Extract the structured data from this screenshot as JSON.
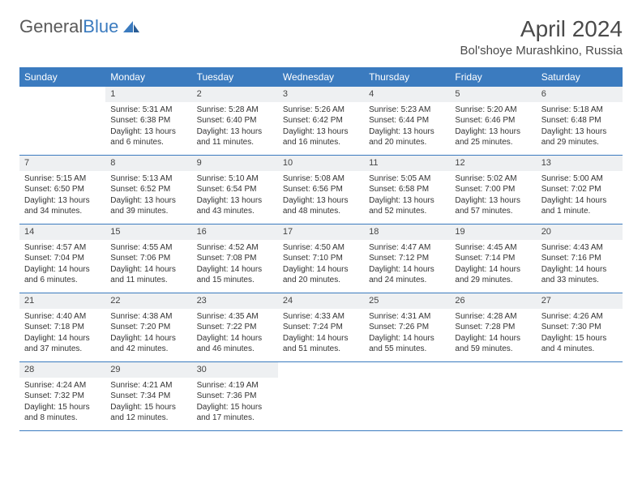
{
  "brand": {
    "part1": "General",
    "part2": "Blue"
  },
  "title": "April 2024",
  "location": "Bol'shoye Murashkino, Russia",
  "colors": {
    "header_bg": "#3b7bbf",
    "header_text": "#ffffff",
    "daynum_bg": "#eef0f2",
    "border": "#3b7bbf",
    "text": "#333333",
    "title_text": "#4a4a4a"
  },
  "weekdays": [
    "Sunday",
    "Monday",
    "Tuesday",
    "Wednesday",
    "Thursday",
    "Friday",
    "Saturday"
  ],
  "weeks": [
    [
      null,
      {
        "n": "1",
        "sr": "5:31 AM",
        "ss": "6:38 PM",
        "dl": "13 hours and 6 minutes."
      },
      {
        "n": "2",
        "sr": "5:28 AM",
        "ss": "6:40 PM",
        "dl": "13 hours and 11 minutes."
      },
      {
        "n": "3",
        "sr": "5:26 AM",
        "ss": "6:42 PM",
        "dl": "13 hours and 16 minutes."
      },
      {
        "n": "4",
        "sr": "5:23 AM",
        "ss": "6:44 PM",
        "dl": "13 hours and 20 minutes."
      },
      {
        "n": "5",
        "sr": "5:20 AM",
        "ss": "6:46 PM",
        "dl": "13 hours and 25 minutes."
      },
      {
        "n": "6",
        "sr": "5:18 AM",
        "ss": "6:48 PM",
        "dl": "13 hours and 29 minutes."
      }
    ],
    [
      {
        "n": "7",
        "sr": "5:15 AM",
        "ss": "6:50 PM",
        "dl": "13 hours and 34 minutes."
      },
      {
        "n": "8",
        "sr": "5:13 AM",
        "ss": "6:52 PM",
        "dl": "13 hours and 39 minutes."
      },
      {
        "n": "9",
        "sr": "5:10 AM",
        "ss": "6:54 PM",
        "dl": "13 hours and 43 minutes."
      },
      {
        "n": "10",
        "sr": "5:08 AM",
        "ss": "6:56 PM",
        "dl": "13 hours and 48 minutes."
      },
      {
        "n": "11",
        "sr": "5:05 AM",
        "ss": "6:58 PM",
        "dl": "13 hours and 52 minutes."
      },
      {
        "n": "12",
        "sr": "5:02 AM",
        "ss": "7:00 PM",
        "dl": "13 hours and 57 minutes."
      },
      {
        "n": "13",
        "sr": "5:00 AM",
        "ss": "7:02 PM",
        "dl": "14 hours and 1 minute."
      }
    ],
    [
      {
        "n": "14",
        "sr": "4:57 AM",
        "ss": "7:04 PM",
        "dl": "14 hours and 6 minutes."
      },
      {
        "n": "15",
        "sr": "4:55 AM",
        "ss": "7:06 PM",
        "dl": "14 hours and 11 minutes."
      },
      {
        "n": "16",
        "sr": "4:52 AM",
        "ss": "7:08 PM",
        "dl": "14 hours and 15 minutes."
      },
      {
        "n": "17",
        "sr": "4:50 AM",
        "ss": "7:10 PM",
        "dl": "14 hours and 20 minutes."
      },
      {
        "n": "18",
        "sr": "4:47 AM",
        "ss": "7:12 PM",
        "dl": "14 hours and 24 minutes."
      },
      {
        "n": "19",
        "sr": "4:45 AM",
        "ss": "7:14 PM",
        "dl": "14 hours and 29 minutes."
      },
      {
        "n": "20",
        "sr": "4:43 AM",
        "ss": "7:16 PM",
        "dl": "14 hours and 33 minutes."
      }
    ],
    [
      {
        "n": "21",
        "sr": "4:40 AM",
        "ss": "7:18 PM",
        "dl": "14 hours and 37 minutes."
      },
      {
        "n": "22",
        "sr": "4:38 AM",
        "ss": "7:20 PM",
        "dl": "14 hours and 42 minutes."
      },
      {
        "n": "23",
        "sr": "4:35 AM",
        "ss": "7:22 PM",
        "dl": "14 hours and 46 minutes."
      },
      {
        "n": "24",
        "sr": "4:33 AM",
        "ss": "7:24 PM",
        "dl": "14 hours and 51 minutes."
      },
      {
        "n": "25",
        "sr": "4:31 AM",
        "ss": "7:26 PM",
        "dl": "14 hours and 55 minutes."
      },
      {
        "n": "26",
        "sr": "4:28 AM",
        "ss": "7:28 PM",
        "dl": "14 hours and 59 minutes."
      },
      {
        "n": "27",
        "sr": "4:26 AM",
        "ss": "7:30 PM",
        "dl": "15 hours and 4 minutes."
      }
    ],
    [
      {
        "n": "28",
        "sr": "4:24 AM",
        "ss": "7:32 PM",
        "dl": "15 hours and 8 minutes."
      },
      {
        "n": "29",
        "sr": "4:21 AM",
        "ss": "7:34 PM",
        "dl": "15 hours and 12 minutes."
      },
      {
        "n": "30",
        "sr": "4:19 AM",
        "ss": "7:36 PM",
        "dl": "15 hours and 17 minutes."
      },
      null,
      null,
      null,
      null
    ]
  ],
  "labels": {
    "sunrise": "Sunrise:",
    "sunset": "Sunset:",
    "daylight": "Daylight:"
  }
}
